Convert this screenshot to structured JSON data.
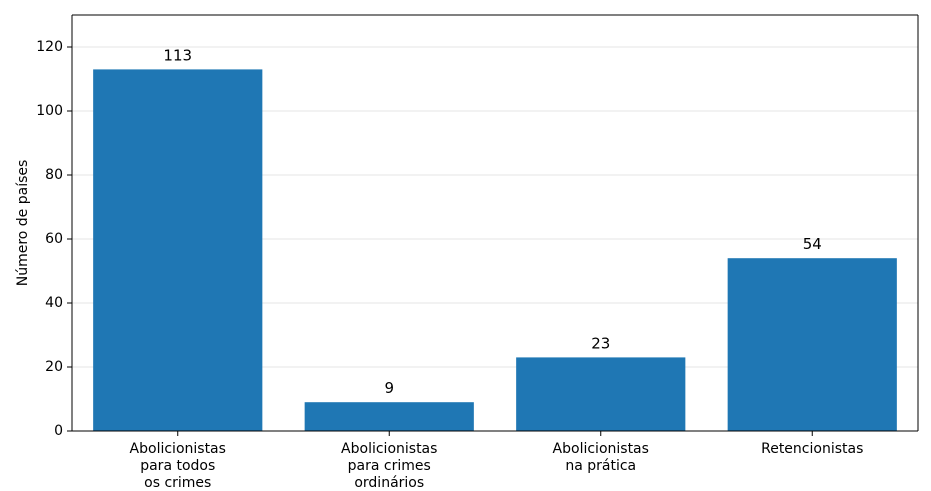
{
  "chart_data": {
    "type": "bar",
    "categories": [
      [
        "Abolicionistas",
        "para todos",
        "os crimes"
      ],
      [
        "Abolicionistas",
        "para crimes",
        "ordinários"
      ],
      [
        "Abolicionistas",
        "na prática"
      ],
      [
        "Retencionistas"
      ]
    ],
    "values": [
      113,
      9,
      23,
      54
    ],
    "ylabel": "Número de países",
    "xlabel": "",
    "title": "",
    "ylim": [
      0,
      130
    ],
    "yticks": [
      0,
      20,
      40,
      60,
      80,
      100,
      120
    ],
    "grid": "horizontal",
    "bar_color": "#1f77b4",
    "grid_color": "#e6e6e6"
  }
}
